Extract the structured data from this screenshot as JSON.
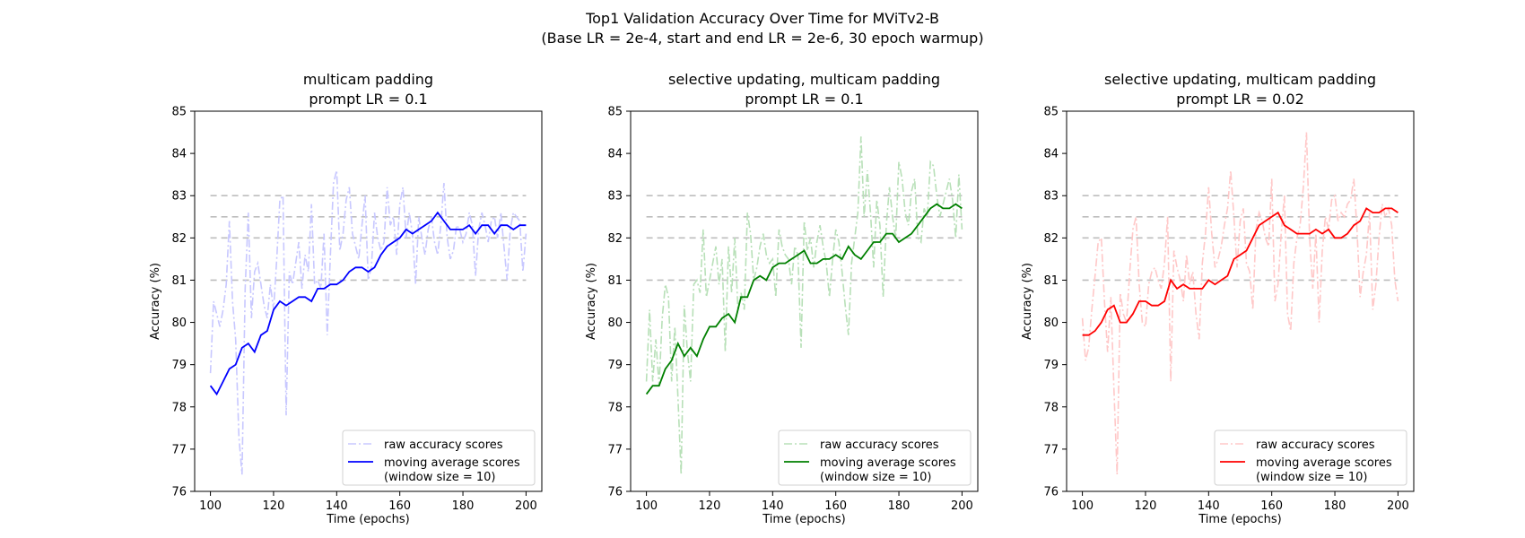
{
  "figure": {
    "title_line1": "Top1 Validation Accuracy Over Time for MViTv2-B",
    "title_line2": "(Base LR = 2e-4, start and end LR = 2e-6, 30 epoch warmup)"
  },
  "chart_data": [
    {
      "type": "line",
      "title_lines": [
        "multicam padding",
        "prompt LR = 0.1"
      ],
      "xlabel": "Time (epochs)",
      "ylabel": "Accuracy (%)",
      "xlim": [
        95,
        205
      ],
      "ylim": [
        76,
        85
      ],
      "xticks": [
        100,
        120,
        140,
        160,
        180,
        200
      ],
      "yticks": [
        76,
        77,
        78,
        79,
        80,
        81,
        82,
        83,
        84,
        85
      ],
      "reference_lines": [
        81,
        82,
        82.5,
        83
      ],
      "legend_position": "lower-right",
      "color": "#0000ff",
      "raw_color": "#c8c8ff",
      "series": [
        {
          "name": "raw accuracy scores",
          "style": "dashdot",
          "x": [
            100,
            101,
            102,
            103,
            104,
            105,
            106,
            107,
            108,
            109,
            110,
            111,
            112,
            113,
            114,
            115,
            116,
            117,
            118,
            119,
            120,
            121,
            122,
            123,
            124,
            125,
            126,
            127,
            128,
            129,
            130,
            131,
            132,
            133,
            134,
            135,
            136,
            137,
            138,
            139,
            140,
            141,
            142,
            143,
            144,
            145,
            146,
            147,
            148,
            149,
            150,
            151,
            152,
            153,
            154,
            155,
            156,
            157,
            158,
            159,
            160,
            161,
            162,
            163,
            164,
            165,
            166,
            167,
            168,
            169,
            170,
            171,
            172,
            173,
            174,
            175,
            176,
            177,
            178,
            179,
            180,
            181,
            182,
            183,
            184,
            185,
            186,
            187,
            188,
            189,
            190,
            191,
            192,
            193,
            194,
            195,
            196,
            197,
            198,
            199,
            200
          ],
          "y": [
            78.8,
            80.5,
            80.2,
            79.9,
            80.3,
            80.9,
            82.4,
            80.5,
            79.6,
            77.3,
            76.4,
            80.8,
            82.6,
            80.1,
            81.2,
            81.4,
            80.9,
            80.4,
            80.1,
            80.9,
            80.3,
            81.5,
            82.9,
            83.0,
            77.8,
            81.2,
            80.9,
            81.4,
            81.9,
            80.8,
            81.6,
            81.2,
            82.8,
            80.9,
            81.0,
            80.8,
            82.1,
            79.7,
            81.6,
            83.3,
            83.6,
            81.7,
            82.1,
            82.9,
            83.2,
            82.1,
            81.8,
            81.5,
            82.3,
            83.0,
            81.0,
            81.3,
            82.6,
            82.0,
            81.7,
            81.9,
            83.2,
            82.3,
            82.5,
            81.6,
            82.8,
            83.2,
            82.0,
            82.6,
            82.1,
            80.9,
            82.5,
            82.0,
            81.6,
            82.2,
            82.5,
            81.9,
            81.6,
            82.3,
            83.3,
            82.0,
            81.5,
            81.7,
            82.3,
            82.2,
            81.9,
            82.1,
            82.6,
            82.3,
            81.1,
            82.2,
            82.6,
            82.3,
            81.9,
            82.4,
            82.5,
            82.0,
            82.6,
            81.8,
            81.0,
            82.2,
            82.6,
            82.5,
            82.4,
            81.2,
            82.1
          ]
        },
        {
          "name": "moving average scores\n(window size = 10)",
          "style": "solid",
          "x": [
            100,
            102,
            104,
            106,
            108,
            110,
            112,
            114,
            116,
            118,
            120,
            122,
            124,
            126,
            128,
            130,
            132,
            134,
            136,
            138,
            140,
            142,
            144,
            146,
            148,
            150,
            152,
            154,
            156,
            158,
            160,
            162,
            164,
            166,
            168,
            170,
            172,
            174,
            176,
            178,
            180,
            182,
            184,
            186,
            188,
            190,
            192,
            194,
            196,
            198,
            200
          ],
          "y": [
            78.5,
            78.3,
            78.6,
            78.9,
            79.0,
            79.4,
            79.5,
            79.3,
            79.7,
            79.8,
            80.3,
            80.5,
            80.4,
            80.5,
            80.6,
            80.6,
            80.5,
            80.8,
            80.8,
            80.9,
            80.9,
            81.0,
            81.2,
            81.3,
            81.3,
            81.2,
            81.3,
            81.6,
            81.8,
            81.9,
            82.0,
            82.2,
            82.1,
            82.2,
            82.3,
            82.4,
            82.6,
            82.4,
            82.2,
            82.2,
            82.2,
            82.3,
            82.1,
            82.3,
            82.3,
            82.1,
            82.3,
            82.3,
            82.2,
            82.3,
            82.3
          ]
        }
      ]
    },
    {
      "type": "line",
      "title_lines": [
        "selective updating, multicam padding",
        "prompt LR = 0.1"
      ],
      "xlabel": "Time (epochs)",
      "ylabel": "Accuracy (%)",
      "xlim": [
        95,
        205
      ],
      "ylim": [
        76,
        85
      ],
      "xticks": [
        100,
        120,
        140,
        160,
        180,
        200
      ],
      "yticks": [
        76,
        77,
        78,
        79,
        80,
        81,
        82,
        83,
        84,
        85
      ],
      "reference_lines": [
        81,
        82,
        82.5,
        83
      ],
      "legend_position": "lower-right",
      "color": "#008000",
      "raw_color": "#b8e0b8",
      "series": [
        {
          "name": "raw accuracy scores",
          "style": "dashdot",
          "x": [
            100,
            101,
            102,
            103,
            104,
            105,
            106,
            107,
            108,
            109,
            110,
            111,
            112,
            113,
            114,
            115,
            116,
            117,
            118,
            119,
            120,
            121,
            122,
            123,
            124,
            125,
            126,
            127,
            128,
            129,
            130,
            131,
            132,
            133,
            134,
            135,
            136,
            137,
            138,
            139,
            140,
            141,
            142,
            143,
            144,
            145,
            146,
            147,
            148,
            149,
            150,
            151,
            152,
            153,
            154,
            155,
            156,
            157,
            158,
            159,
            160,
            161,
            162,
            163,
            164,
            165,
            166,
            167,
            168,
            169,
            170,
            171,
            172,
            173,
            174,
            175,
            176,
            177,
            178,
            179,
            180,
            181,
            182,
            183,
            184,
            185,
            186,
            187,
            188,
            189,
            190,
            191,
            192,
            193,
            194,
            195,
            196,
            197,
            198,
            199,
            200
          ],
          "y": [
            78.6,
            80.3,
            78.6,
            79.6,
            78.5,
            80.1,
            80.9,
            80.6,
            78.6,
            79.9,
            78.2,
            76.4,
            80.4,
            79.3,
            78.6,
            80.9,
            81.0,
            80.7,
            82.2,
            80.6,
            81.0,
            81.4,
            81.8,
            80.9,
            81.5,
            79.3,
            81.8,
            80.7,
            82.0,
            80.3,
            80.7,
            80.3,
            82.6,
            82.1,
            81.0,
            81.3,
            81.8,
            82.1,
            81.6,
            81.4,
            81.5,
            80.6,
            82.2,
            81.8,
            81.6,
            81.5,
            80.9,
            81.8,
            81.6,
            79.4,
            82.4,
            81.7,
            82.0,
            81.3,
            81.9,
            82.3,
            81.8,
            81.4,
            80.6,
            81.5,
            82.2,
            81.9,
            81.2,
            80.4,
            79.7,
            81.4,
            82.0,
            82.6,
            84.4,
            82.5,
            83.6,
            82.6,
            81.3,
            82.9,
            82.3,
            80.6,
            82.3,
            83.2,
            82.5,
            82.0,
            83.8,
            83.4,
            82.6,
            82.3,
            83.1,
            83.4,
            82.0,
            81.9,
            82.7,
            82.5,
            83.8,
            83.7,
            83.0,
            82.5,
            82.8,
            83.1,
            83.4,
            82.9,
            82.0,
            83.5,
            82.2
          ]
        },
        {
          "name": "moving average scores\n(window size = 10)",
          "style": "solid",
          "x": [
            100,
            102,
            104,
            106,
            108,
            110,
            112,
            114,
            116,
            118,
            120,
            122,
            124,
            126,
            128,
            130,
            132,
            134,
            136,
            138,
            140,
            142,
            144,
            146,
            148,
            150,
            152,
            154,
            156,
            158,
            160,
            162,
            164,
            166,
            168,
            170,
            172,
            174,
            176,
            178,
            180,
            182,
            184,
            186,
            188,
            190,
            192,
            194,
            196,
            198,
            200
          ],
          "y": [
            78.3,
            78.5,
            78.5,
            78.9,
            79.1,
            79.5,
            79.2,
            79.4,
            79.2,
            79.6,
            79.9,
            79.9,
            80.1,
            80.2,
            80.0,
            80.6,
            80.6,
            81.0,
            81.1,
            81.0,
            81.3,
            81.4,
            81.4,
            81.5,
            81.6,
            81.7,
            81.4,
            81.4,
            81.5,
            81.5,
            81.6,
            81.5,
            81.8,
            81.6,
            81.5,
            81.7,
            81.9,
            81.9,
            82.1,
            82.1,
            81.9,
            82.0,
            82.1,
            82.3,
            82.5,
            82.7,
            82.8,
            82.7,
            82.7,
            82.8,
            82.7
          ]
        }
      ]
    },
    {
      "type": "line",
      "title_lines": [
        "selective updating, multicam padding",
        "prompt LR = 0.02"
      ],
      "xlabel": "Time (epochs)",
      "ylabel": "Accuracy (%)",
      "xlim": [
        95,
        205
      ],
      "ylim": [
        76,
        85
      ],
      "xticks": [
        100,
        120,
        140,
        160,
        180,
        200
      ],
      "yticks": [
        76,
        77,
        78,
        79,
        80,
        81,
        82,
        83,
        84,
        85
      ],
      "reference_lines": [
        81,
        82,
        82.5,
        83
      ],
      "legend_position": "lower-right",
      "color": "#ff0000",
      "raw_color": "#ffc8c8",
      "series": [
        {
          "name": "raw accuracy scores",
          "style": "dashdot",
          "x": [
            100,
            101,
            102,
            103,
            104,
            105,
            106,
            107,
            108,
            109,
            110,
            111,
            112,
            113,
            114,
            115,
            116,
            117,
            118,
            119,
            120,
            121,
            122,
            123,
            124,
            125,
            126,
            127,
            128,
            129,
            130,
            131,
            132,
            133,
            134,
            135,
            136,
            137,
            138,
            139,
            140,
            141,
            142,
            143,
            144,
            145,
            146,
            147,
            148,
            149,
            150,
            151,
            152,
            153,
            154,
            155,
            156,
            157,
            158,
            159,
            160,
            161,
            162,
            163,
            164,
            165,
            166,
            167,
            168,
            169,
            170,
            171,
            172,
            173,
            174,
            175,
            176,
            177,
            178,
            179,
            180,
            181,
            182,
            183,
            184,
            185,
            186,
            187,
            188,
            189,
            190,
            191,
            192,
            193,
            194,
            195,
            196,
            197,
            198,
            199,
            200
          ],
          "y": [
            80.1,
            79.1,
            79.4,
            80.3,
            81.1,
            81.9,
            82.0,
            80.5,
            79.3,
            80.6,
            78.4,
            76.4,
            80.7,
            80.2,
            80.0,
            81.2,
            82.2,
            82.5,
            80.9,
            80.0,
            79.9,
            80.9,
            81.2,
            81.3,
            81.0,
            80.8,
            81.4,
            82.5,
            78.6,
            81.7,
            81.3,
            81.0,
            80.5,
            81.6,
            80.9,
            81.2,
            80.2,
            79.6,
            81.4,
            82.1,
            83.2,
            82.1,
            81.3,
            81.5,
            81.8,
            82.3,
            82.7,
            83.6,
            82.5,
            81.3,
            82.4,
            82.7,
            81.4,
            81.2,
            80.3,
            82.2,
            82.6,
            82.4,
            82.0,
            81.8,
            83.4,
            80.5,
            80.9,
            82.1,
            83.0,
            80.2,
            79.8,
            81.4,
            82.0,
            82.3,
            83.2,
            84.5,
            82.0,
            80.8,
            82.1,
            80.0,
            81.7,
            82.5,
            82.2,
            82.9,
            83.0,
            82.4,
            82.6,
            82.5,
            82.8,
            82.9,
            83.4,
            82.2,
            80.6,
            81.2,
            81.6,
            82.6,
            80.3,
            80.9,
            82.0,
            82.8,
            82.5,
            82.7,
            82.3,
            81.0,
            80.5
          ]
        },
        {
          "name": "moving average scores\n(window size = 10)",
          "style": "solid",
          "x": [
            100,
            102,
            104,
            106,
            108,
            110,
            112,
            114,
            116,
            118,
            120,
            122,
            124,
            126,
            128,
            130,
            132,
            134,
            136,
            138,
            140,
            142,
            144,
            146,
            148,
            150,
            152,
            154,
            156,
            158,
            160,
            162,
            164,
            166,
            168,
            170,
            172,
            174,
            176,
            178,
            180,
            182,
            184,
            186,
            188,
            190,
            192,
            194,
            196,
            198,
            200
          ],
          "y": [
            79.7,
            79.7,
            79.8,
            80.0,
            80.3,
            80.4,
            80.0,
            80.0,
            80.2,
            80.5,
            80.5,
            80.4,
            80.4,
            80.5,
            81.0,
            80.8,
            80.9,
            80.8,
            80.8,
            80.8,
            81.0,
            80.9,
            81.0,
            81.1,
            81.5,
            81.6,
            81.7,
            82.0,
            82.3,
            82.4,
            82.5,
            82.6,
            82.3,
            82.2,
            82.1,
            82.1,
            82.1,
            82.2,
            82.1,
            82.2,
            82.0,
            82.0,
            82.1,
            82.3,
            82.4,
            82.7,
            82.6,
            82.6,
            82.7,
            82.7,
            82.6
          ]
        }
      ]
    }
  ]
}
